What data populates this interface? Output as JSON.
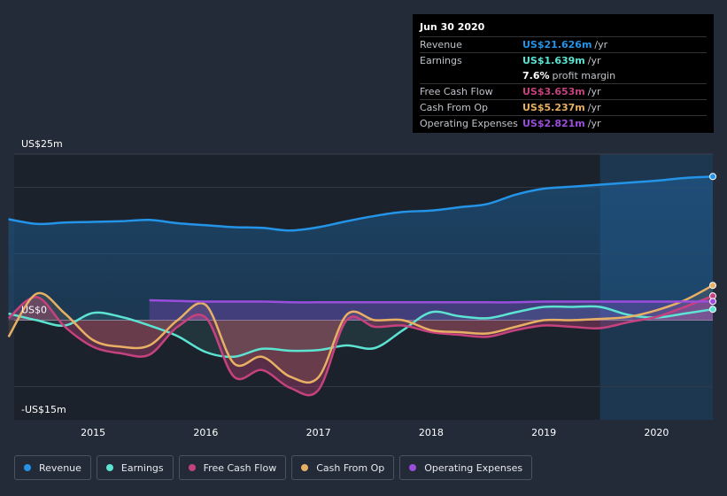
{
  "tooltip": {
    "date": "Jun 30 2020",
    "rows": {
      "revenue": {
        "label": "Revenue",
        "value": "US$21.626m",
        "unit": "/yr"
      },
      "earnings": {
        "label": "Earnings",
        "value": "US$1.639m",
        "unit": "/yr"
      },
      "margin": {
        "value": "7.6%",
        "text": "profit margin"
      },
      "fcf": {
        "label": "Free Cash Flow",
        "value": "US$3.653m",
        "unit": "/yr"
      },
      "cfo": {
        "label": "Cash From Op",
        "value": "US$5.237m",
        "unit": "/yr"
      },
      "opex": {
        "label": "Operating Expenses",
        "value": "US$2.821m",
        "unit": "/yr"
      }
    }
  },
  "legend": [
    {
      "label": "Revenue",
      "color": "#2394e8"
    },
    {
      "label": "Earnings",
      "color": "#5de3d2"
    },
    {
      "label": "Free Cash Flow",
      "color": "#c6427e"
    },
    {
      "label": "Cash From Op",
      "color": "#e8b064"
    },
    {
      "label": "Operating Expenses",
      "color": "#9b4ddc"
    }
  ],
  "chart_data": {
    "type": "line",
    "title": "",
    "y_tick_labels": [
      "US$25m",
      "US$0",
      "-US$15m"
    ],
    "ylim": [
      -15,
      25
    ],
    "xlim": [
      2014.3,
      2020.5
    ],
    "x_tick_labels": [
      "2015",
      "2016",
      "2017",
      "2018",
      "2019",
      "2020"
    ],
    "x_ticks": [
      2015,
      2016,
      2017,
      2018,
      2019,
      2020
    ],
    "highlight_from": 2019.5,
    "series": [
      {
        "name": "Revenue",
        "color": "#2394e8",
        "x": [
          2014.25,
          2014.5,
          2014.75,
          2015.0,
          2015.25,
          2015.5,
          2015.75,
          2016.0,
          2016.25,
          2016.5,
          2016.75,
          2017.0,
          2017.25,
          2017.5,
          2017.75,
          2018.0,
          2018.25,
          2018.5,
          2018.75,
          2019.0,
          2019.25,
          2019.5,
          2019.75,
          2020.0,
          2020.25,
          2020.5
        ],
        "values": [
          15.2,
          14.5,
          14.7,
          14.8,
          14.9,
          15.1,
          14.6,
          14.3,
          14.0,
          13.9,
          13.5,
          14.0,
          14.9,
          15.7,
          16.3,
          16.5,
          17.0,
          17.5,
          18.9,
          19.8,
          20.1,
          20.4,
          20.7,
          21.0,
          21.4,
          21.626
        ]
      },
      {
        "name": "Earnings",
        "color": "#5de3d2",
        "x": [
          2014.25,
          2014.5,
          2014.75,
          2015.0,
          2015.25,
          2015.5,
          2015.75,
          2016.0,
          2016.25,
          2016.5,
          2016.75,
          2017.0,
          2017.25,
          2017.5,
          2017.75,
          2018.0,
          2018.25,
          2018.5,
          2018.75,
          2019.0,
          2019.25,
          2019.5,
          2019.75,
          2020.0,
          2020.25,
          2020.5
        ],
        "values": [
          1.0,
          0.0,
          -0.8,
          1.1,
          0.5,
          -0.8,
          -2.4,
          -4.8,
          -5.5,
          -4.3,
          -4.6,
          -4.5,
          -3.8,
          -4.2,
          -1.5,
          1.2,
          0.6,
          0.3,
          1.2,
          2.0,
          2.0,
          2.0,
          0.8,
          0.4,
          1.0,
          1.639
        ]
      },
      {
        "name": "Free Cash Flow",
        "color": "#c6427e",
        "x": [
          2014.25,
          2014.5,
          2014.75,
          2015.0,
          2015.25,
          2015.5,
          2015.75,
          2016.0,
          2016.25,
          2016.5,
          2016.75,
          2017.0,
          2017.25,
          2017.5,
          2017.75,
          2018.0,
          2018.25,
          2018.5,
          2018.75,
          2019.0,
          2019.25,
          2019.5,
          2019.75,
          2020.0,
          2020.25,
          2020.5
        ],
        "values": [
          0.3,
          3.5,
          -1.0,
          -4.0,
          -5.0,
          -5.2,
          -1.0,
          0.4,
          -8.5,
          -7.5,
          -10.2,
          -10.5,
          0.0,
          -1.0,
          -0.8,
          -1.8,
          -2.2,
          -2.5,
          -1.5,
          -0.8,
          -1.0,
          -1.2,
          -0.3,
          0.5,
          2.0,
          3.653
        ]
      },
      {
        "name": "Cash From Op",
        "color": "#e8b064",
        "x": [
          2014.25,
          2014.5,
          2014.75,
          2015.0,
          2015.25,
          2015.5,
          2015.75,
          2016.0,
          2016.25,
          2016.5,
          2016.75,
          2017.0,
          2017.25,
          2017.5,
          2017.75,
          2018.0,
          2018.25,
          2018.5,
          2018.75,
          2019.0,
          2019.25,
          2019.5,
          2019.75,
          2020.0,
          2020.25,
          2020.5
        ],
        "values": [
          -2.5,
          4.0,
          1.0,
          -3.0,
          -4.0,
          -3.8,
          0.0,
          2.3,
          -6.5,
          -5.5,
          -8.5,
          -8.6,
          0.8,
          0.0,
          0.0,
          -1.5,
          -1.8,
          -2.0,
          -1.0,
          0.0,
          0.0,
          0.2,
          0.5,
          1.5,
          3.0,
          5.237
        ]
      },
      {
        "name": "Operating Expenses",
        "color": "#9b4ddc",
        "x": [
          2015.5,
          2015.75,
          2016.0,
          2016.25,
          2016.5,
          2016.75,
          2017.0,
          2017.25,
          2017.5,
          2017.75,
          2018.0,
          2018.25,
          2018.5,
          2018.75,
          2019.0,
          2019.25,
          2019.5,
          2019.75,
          2020.0,
          2020.25,
          2020.5
        ],
        "values": [
          3.0,
          2.9,
          2.8,
          2.8,
          2.8,
          2.7,
          2.7,
          2.7,
          2.7,
          2.7,
          2.7,
          2.7,
          2.7,
          2.7,
          2.8,
          2.8,
          2.8,
          2.8,
          2.8,
          2.8,
          2.821
        ]
      }
    ]
  }
}
